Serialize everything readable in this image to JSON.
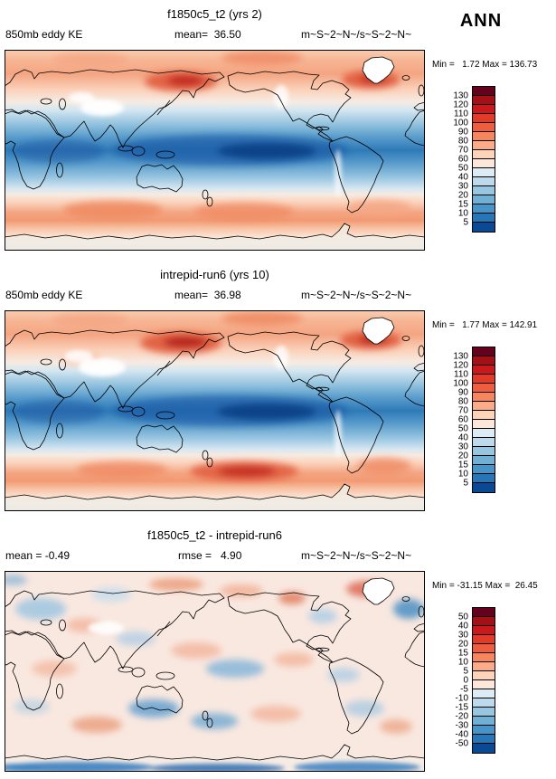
{
  "header": {
    "season_label": "ANN"
  },
  "panels": [
    {
      "title": "f1850c5_t2 (yrs 2)",
      "left_label": "850mb eddy KE",
      "center_label": "mean=  36.50",
      "right_label": "m~S~2~N~/s~S~2~N~",
      "minmax_label": "Min =   1.72 Max = 136.73"
    },
    {
      "title": "intrepid-run6 (yrs 10)",
      "left_label": "850mb eddy KE",
      "center_label": "mean=  36.98",
      "right_label": "m~S~2~N~/s~S~2~N~",
      "minmax_label": "Min =   1.77 Max = 142.91"
    },
    {
      "title": "f1850c5_t2 - intrepid-run6",
      "left_label": "mean = -0.49",
      "center_label": "rmse =   4.90",
      "right_label": "m~S~2~N~/s~S~2~N~",
      "minmax_label": "Min = -31.15 Max =  26.45"
    }
  ],
  "chart_data": [
    {
      "type": "heatmap",
      "title": "f1850c5_t2 (yrs 2)",
      "variable": "850mb eddy KE",
      "season": "ANN",
      "units": "m~S~2~N~/s~S~2~N~",
      "mean": 36.5,
      "min": 1.72,
      "max": 136.73,
      "contour_levels": [
        5,
        10,
        15,
        20,
        30,
        40,
        50,
        60,
        70,
        80,
        90,
        100,
        110,
        120,
        130
      ],
      "colorbar_labels_top_to_bottom": [
        "130",
        "120",
        "110",
        "100",
        "90",
        "80",
        "70",
        "60",
        "50",
        "40",
        "30",
        "20",
        "15",
        "10",
        "5"
      ],
      "colorbar_colors_top_to_bottom": [
        "#67001f",
        "#a50f15",
        "#cb181d",
        "#e23928",
        "#ef5c40",
        "#f7865f",
        "#fbab87",
        "#fdd3ba",
        "#fde7da",
        "#dcebf5",
        "#bcdaec",
        "#97c6e0",
        "#6fb0d7",
        "#4694c8",
        "#2676b8",
        "#0a4a94"
      ],
      "colorbar_position": "right-vertical",
      "map_extent": "global"
    },
    {
      "type": "heatmap",
      "title": "intrepid-run6 (yrs 10)",
      "variable": "850mb eddy KE",
      "season": "ANN",
      "units": "m~S~2~N~/s~S~2~N~",
      "mean": 36.98,
      "min": 1.77,
      "max": 142.91,
      "contour_levels": [
        5,
        10,
        15,
        20,
        30,
        40,
        50,
        60,
        70,
        80,
        90,
        100,
        110,
        120,
        130
      ],
      "colorbar_labels_top_to_bottom": [
        "130",
        "120",
        "110",
        "100",
        "90",
        "80",
        "70",
        "60",
        "50",
        "40",
        "30",
        "20",
        "15",
        "10",
        "5"
      ],
      "colorbar_colors_top_to_bottom": [
        "#67001f",
        "#a50f15",
        "#cb181d",
        "#e23928",
        "#ef5c40",
        "#f7865f",
        "#fbab87",
        "#fdd3ba",
        "#fde7da",
        "#dcebf5",
        "#bcdaec",
        "#97c6e0",
        "#6fb0d7",
        "#4694c8",
        "#2676b8",
        "#0a4a94"
      ],
      "colorbar_position": "right-vertical",
      "map_extent": "global"
    },
    {
      "type": "heatmap",
      "title": "f1850c5_t2 - intrepid-run6",
      "season": "ANN",
      "units": "m~S~2~N~/s~S~2~N~",
      "mean": -0.49,
      "rmse": 4.9,
      "min": -31.15,
      "max": 26.45,
      "contour_levels": [
        -50,
        -40,
        -30,
        -20,
        -15,
        -10,
        -5,
        0,
        5,
        10,
        15,
        20,
        30,
        40,
        50
      ],
      "colorbar_labels_top_to_bottom": [
        "50",
        "40",
        "30",
        "20",
        "15",
        "10",
        "5",
        "0",
        "-5",
        "-10",
        "-15",
        "-20",
        "-30",
        "-40",
        "-50"
      ],
      "colorbar_colors_top_to_bottom": [
        "#67001f",
        "#a50f15",
        "#cb181d",
        "#e23928",
        "#ef5c40",
        "#f7865f",
        "#fbab87",
        "#fdd3ba",
        "#fde7da",
        "#dcebf5",
        "#bcdaec",
        "#97c6e0",
        "#6fb0d7",
        "#4694c8",
        "#2676b8",
        "#0a4a94"
      ],
      "colorbar_position": "right-vertical",
      "map_extent": "global"
    }
  ]
}
